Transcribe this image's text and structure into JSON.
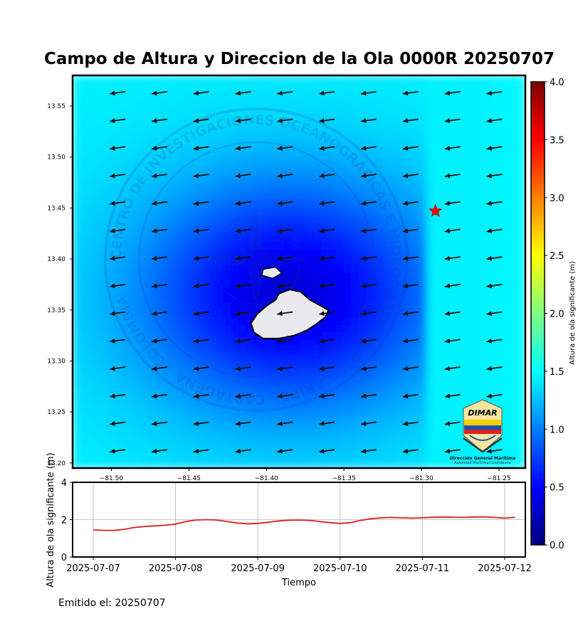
{
  "colors": {
    "colormap": [
      "#00007f",
      "#0000ff",
      "#007fff",
      "#00ffff",
      "#7fff7f",
      "#ffff00",
      "#ff7f00",
      "#ff0000",
      "#7f0000"
    ],
    "series_line": "#d62020",
    "star": "#ff0000"
  },
  "chart_data": [
    {
      "type": "heatmap",
      "title": "Campo de Altura y Direccion de la Ola 0000R 20250707",
      "xlim": [
        -81.525,
        -81.233
      ],
      "ylim": [
        13.195,
        13.58
      ],
      "x_ticks": [
        {
          "value": -81.5,
          "label": "−81.50"
        },
        {
          "value": -81.45,
          "label": "−81.45"
        },
        {
          "value": -81.4,
          "label": "−81.40"
        },
        {
          "value": -81.35,
          "label": "−81.35"
        },
        {
          "value": -81.3,
          "label": "−81.30"
        },
        {
          "value": -81.25,
          "label": "−81.25"
        }
      ],
      "y_ticks": [
        {
          "value": 13.55,
          "label": "13.55"
        },
        {
          "value": 13.5,
          "label": "13.50"
        },
        {
          "value": 13.45,
          "label": "13.45"
        },
        {
          "value": 13.4,
          "label": "13.40"
        },
        {
          "value": 13.35,
          "label": "13.35"
        },
        {
          "value": 13.3,
          "label": "13.30"
        },
        {
          "value": 13.25,
          "label": "13.25"
        },
        {
          "value": 13.2,
          "label": "13.20"
        }
      ],
      "field": {
        "lon_min": -81.525,
        "lon_max": -81.233,
        "lat_min": 13.195,
        "lat_max": 13.58,
        "center_lon": -81.385,
        "center_lat": 13.365,
        "sheltered_min": 0.35,
        "open_sea": 1.45
      },
      "island": {
        "name": "Isla de Providencia",
        "outline": [
          [
            -81.392,
            13.366
          ],
          [
            -81.385,
            13.37
          ],
          [
            -81.378,
            13.368
          ],
          [
            -81.372,
            13.36
          ],
          [
            -81.366,
            13.355
          ],
          [
            -81.36,
            13.35
          ],
          [
            -81.362,
            13.343
          ],
          [
            -81.368,
            13.336
          ],
          [
            -81.374,
            13.33
          ],
          [
            -81.382,
            13.325
          ],
          [
            -81.392,
            13.322
          ],
          [
            -81.402,
            13.322
          ],
          [
            -81.408,
            13.328
          ],
          [
            -81.41,
            13.337
          ],
          [
            -81.406,
            13.346
          ],
          [
            -81.4,
            13.354
          ],
          [
            -81.394,
            13.36
          ]
        ],
        "islet": [
          [
            -81.402,
            13.39
          ],
          [
            -81.394,
            13.392
          ],
          [
            -81.39,
            13.386
          ],
          [
            -81.396,
            13.381
          ],
          [
            -81.403,
            13.384
          ]
        ]
      },
      "arrows": {
        "lons": [
          -81.496,
          -81.469,
          -81.442,
          -81.415,
          -81.388,
          -81.361,
          -81.334,
          -81.307,
          -81.28,
          -81.253
        ],
        "lats": [
          13.563,
          13.536,
          13.509,
          13.482,
          13.455,
          13.428,
          13.401,
          13.374,
          13.347,
          13.32,
          13.293,
          13.266,
          13.239,
          13.212
        ],
        "direction_from": "ENE"
      },
      "marker": {
        "lon": -81.291,
        "lat": 13.447,
        "symbol": "star"
      }
    },
    {
      "type": "colorbar",
      "ylabel": "Altura de ola significante (m)",
      "range": [
        0.0,
        4.0
      ],
      "ticks": [
        "0.0",
        "0.5",
        "1.0",
        "1.5",
        "2.0",
        "2.5",
        "3.0",
        "3.5",
        "4.0"
      ]
    },
    {
      "type": "line",
      "xlabel": "Tiempo",
      "ylabel": "Altura de ola significante (m)",
      "ylim": [
        0,
        4
      ],
      "y_ticks": [
        "0",
        "2",
        "4"
      ],
      "x_ticks": [
        "2025-07-07",
        "2025-07-08",
        "2025-07-09",
        "2025-07-10",
        "2025-07-11",
        "2025-07-12"
      ],
      "x_start": "2025-07-07T00:00",
      "x_step_hours": 3,
      "series": [
        {
          "values": [
            1.45,
            1.43,
            1.42,
            1.48,
            1.58,
            1.63,
            1.67,
            1.7,
            1.76,
            1.9,
            1.98,
            2.0,
            1.98,
            1.9,
            1.82,
            1.78,
            1.8,
            1.86,
            1.93,
            1.97,
            1.98,
            1.96,
            1.9,
            1.84,
            1.8,
            1.84,
            1.96,
            2.05,
            2.1,
            2.12,
            2.1,
            2.08,
            2.1,
            2.13,
            2.14,
            2.13,
            2.12,
            2.14,
            2.15,
            2.12,
            2.08,
            2.13
          ]
        }
      ]
    }
  ],
  "logo": {
    "text": "DIMAR",
    "caption1": "Dirección General Marítima",
    "caption2": "Autoridad Marítima Colombiana"
  },
  "watermark": {
    "text": "CENTRO DE INVESTIGACIONES OCEANOGRÁFICAS E HIDROGRÁFICAS DEL CARIBE · CARTAGENA · COLOMBIA"
  },
  "footer": {
    "issued": "Emitido el: 20250707"
  }
}
